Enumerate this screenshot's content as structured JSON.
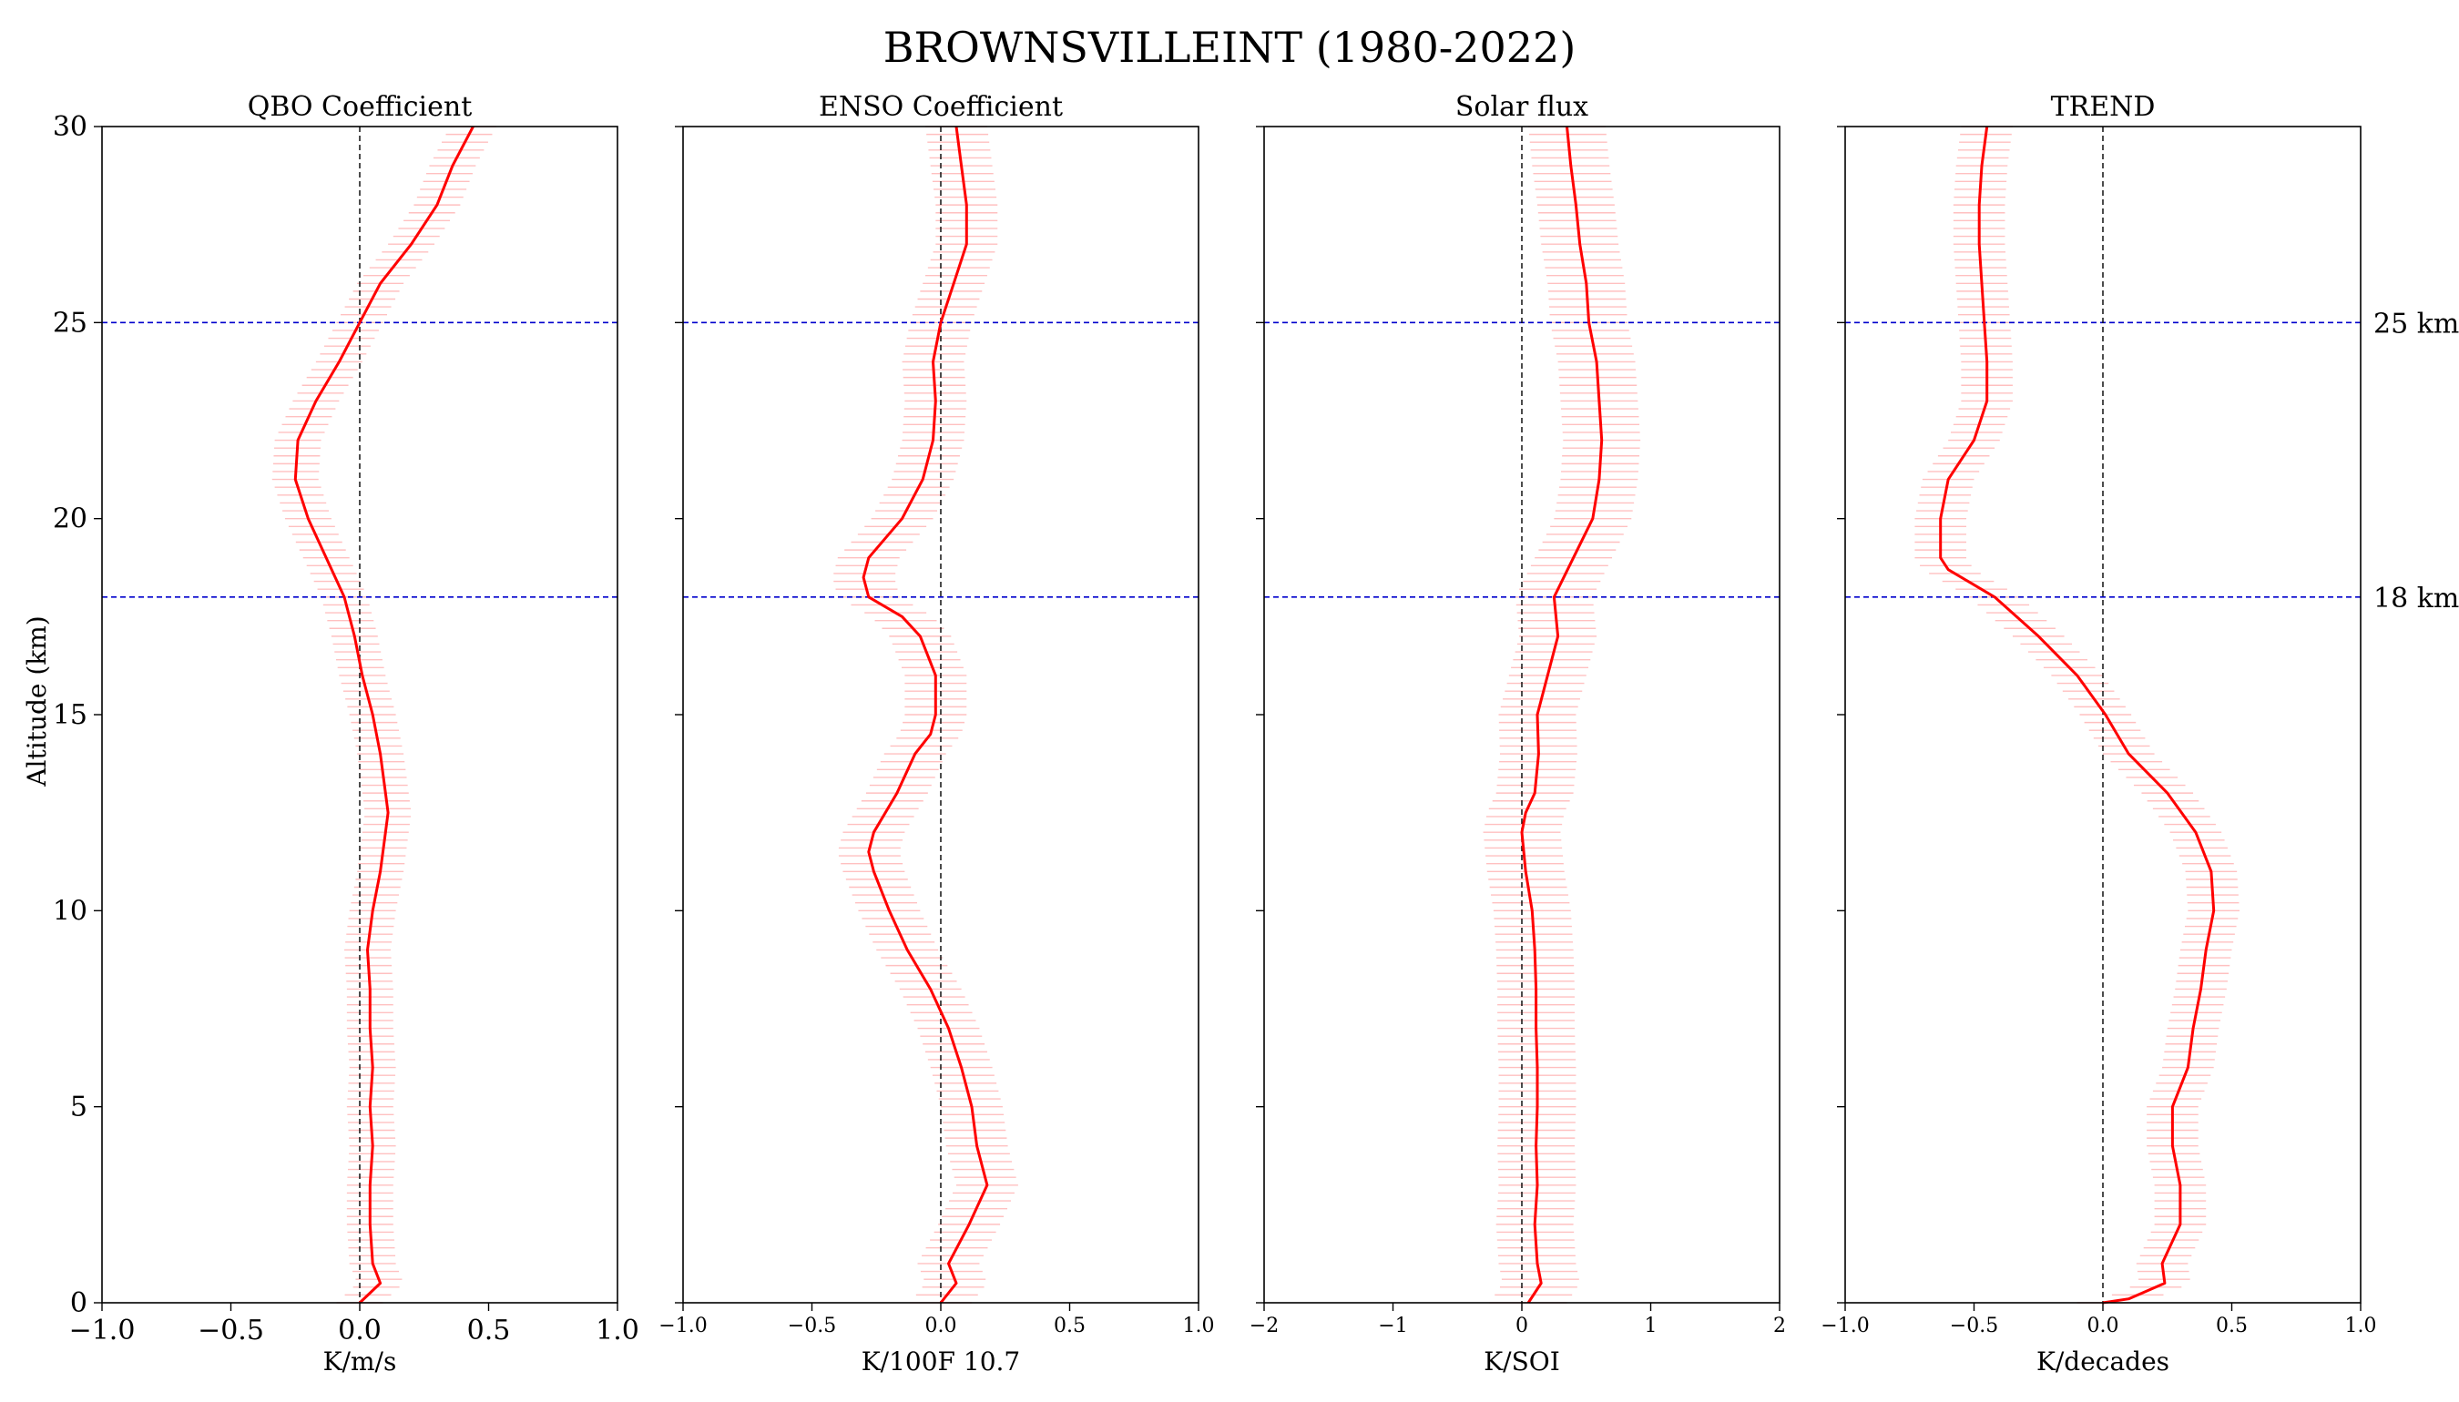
{
  "title": "BROWNSVILLEINT (1980-2022)",
  "ylabel": "Altitude (km)",
  "ylim": [
    0,
    30
  ],
  "yticks": [
    "0",
    "5",
    "10",
    "15",
    "20",
    "25",
    "30"
  ],
  "reference_lines": [
    {
      "y": 18,
      "label": "18 km"
    },
    {
      "y": 25,
      "label": "25 km"
    }
  ],
  "colors": {
    "profile": "#ff0000",
    "uncertainty": "#ffc0c0",
    "reference": "#0000cc",
    "zero": "#000000"
  },
  "chart_data": [
    {
      "type": "line",
      "title": "QBO Coefficient",
      "xlabel": "K/m/s",
      "xlim": [
        -1.0,
        1.0
      ],
      "xticks": [
        "−1.0",
        "−0.5",
        "0.0",
        "0.5",
        "1.0"
      ],
      "altitude": [
        0,
        0.5,
        1,
        2,
        3,
        4,
        5,
        6,
        7,
        8,
        9,
        10,
        11,
        12,
        12.5,
        13,
        14,
        15,
        16,
        17,
        18,
        19,
        20,
        21,
        22,
        23,
        24,
        25,
        26,
        27,
        28,
        29,
        30
      ],
      "coefficient": [
        0.0,
        0.08,
        0.05,
        0.04,
        0.04,
        0.05,
        0.04,
        0.05,
        0.04,
        0.04,
        0.03,
        0.05,
        0.08,
        0.1,
        0.11,
        0.1,
        0.08,
        0.05,
        0.01,
        -0.02,
        -0.06,
        -0.13,
        -0.2,
        -0.25,
        -0.24,
        -0.17,
        -0.08,
        0.0,
        0.08,
        0.2,
        0.3,
        0.36,
        0.44
      ],
      "uncertainty": 0.09
    },
    {
      "type": "line",
      "title": "ENSO Coefficient",
      "xlabel": "K/100F 10.7",
      "xlim": [
        -1.0,
        1.0
      ],
      "xticks": [
        "−1.0",
        "−0.5",
        "0.0",
        "0.5",
        "1.0"
      ],
      "altitude": [
        0,
        0.5,
        1,
        2,
        3,
        4,
        5,
        6,
        7,
        8,
        9,
        10,
        11,
        11.5,
        12,
        13,
        14,
        14.5,
        15,
        16,
        17,
        17.5,
        18,
        18.5,
        19,
        20,
        21,
        22,
        23,
        24,
        25,
        26,
        27,
        28,
        29,
        30
      ],
      "coefficient": [
        0.0,
        0.06,
        0.03,
        0.11,
        0.18,
        0.14,
        0.12,
        0.08,
        0.03,
        -0.04,
        -0.13,
        -0.2,
        -0.26,
        -0.28,
        -0.26,
        -0.17,
        -0.1,
        -0.04,
        -0.02,
        -0.02,
        -0.08,
        -0.15,
        -0.28,
        -0.3,
        -0.28,
        -0.15,
        -0.07,
        -0.03,
        -0.02,
        -0.03,
        0.0,
        0.05,
        0.1,
        0.1,
        0.08,
        0.06
      ],
      "uncertainty": 0.12
    },
    {
      "type": "line",
      "title": "Solar flux",
      "xlabel": "K/SOI",
      "xlim": [
        -2,
        2
      ],
      "xticks": [
        "−2",
        "−1",
        "0",
        "1",
        "2"
      ],
      "altitude": [
        0,
        0.5,
        1,
        2,
        3,
        4,
        5,
        6,
        7,
        8,
        9,
        10,
        11,
        12,
        12.5,
        13,
        14,
        15,
        16,
        17,
        18,
        19,
        20,
        21,
        22,
        23,
        24,
        25,
        26,
        27,
        28,
        29,
        30
      ],
      "coefficient": [
        0.05,
        0.15,
        0.12,
        0.1,
        0.12,
        0.11,
        0.12,
        0.12,
        0.11,
        0.11,
        0.1,
        0.08,
        0.03,
        0.0,
        0.03,
        0.1,
        0.13,
        0.12,
        0.2,
        0.28,
        0.25,
        0.4,
        0.55,
        0.6,
        0.62,
        0.6,
        0.58,
        0.52,
        0.5,
        0.45,
        0.42,
        0.38,
        0.35
      ],
      "uncertainty": 0.3
    },
    {
      "type": "line",
      "title": "TREND",
      "xlabel": "K/decades",
      "xlim": [
        -1.0,
        1.0
      ],
      "xticks": [
        "−1.0",
        "−0.5",
        "0.0",
        "0.5",
        "1.0"
      ],
      "altitude": [
        0,
        0.1,
        0.5,
        1,
        2,
        3,
        4,
        5,
        6,
        7,
        8,
        9,
        10,
        11,
        12,
        13,
        14,
        15,
        16,
        17,
        18,
        18.7,
        19,
        20,
        21,
        22,
        23,
        24,
        25,
        26,
        27,
        28,
        29,
        30
      ],
      "coefficient": [
        0.0,
        0.1,
        0.24,
        0.23,
        0.3,
        0.3,
        0.27,
        0.27,
        0.33,
        0.35,
        0.38,
        0.4,
        0.43,
        0.42,
        0.36,
        0.25,
        0.1,
        0.01,
        -0.1,
        -0.25,
        -0.42,
        -0.6,
        -0.63,
        -0.63,
        -0.6,
        -0.5,
        -0.45,
        -0.45,
        -0.46,
        -0.47,
        -0.48,
        -0.48,
        -0.47,
        -0.45
      ],
      "uncertainty": 0.1
    }
  ]
}
